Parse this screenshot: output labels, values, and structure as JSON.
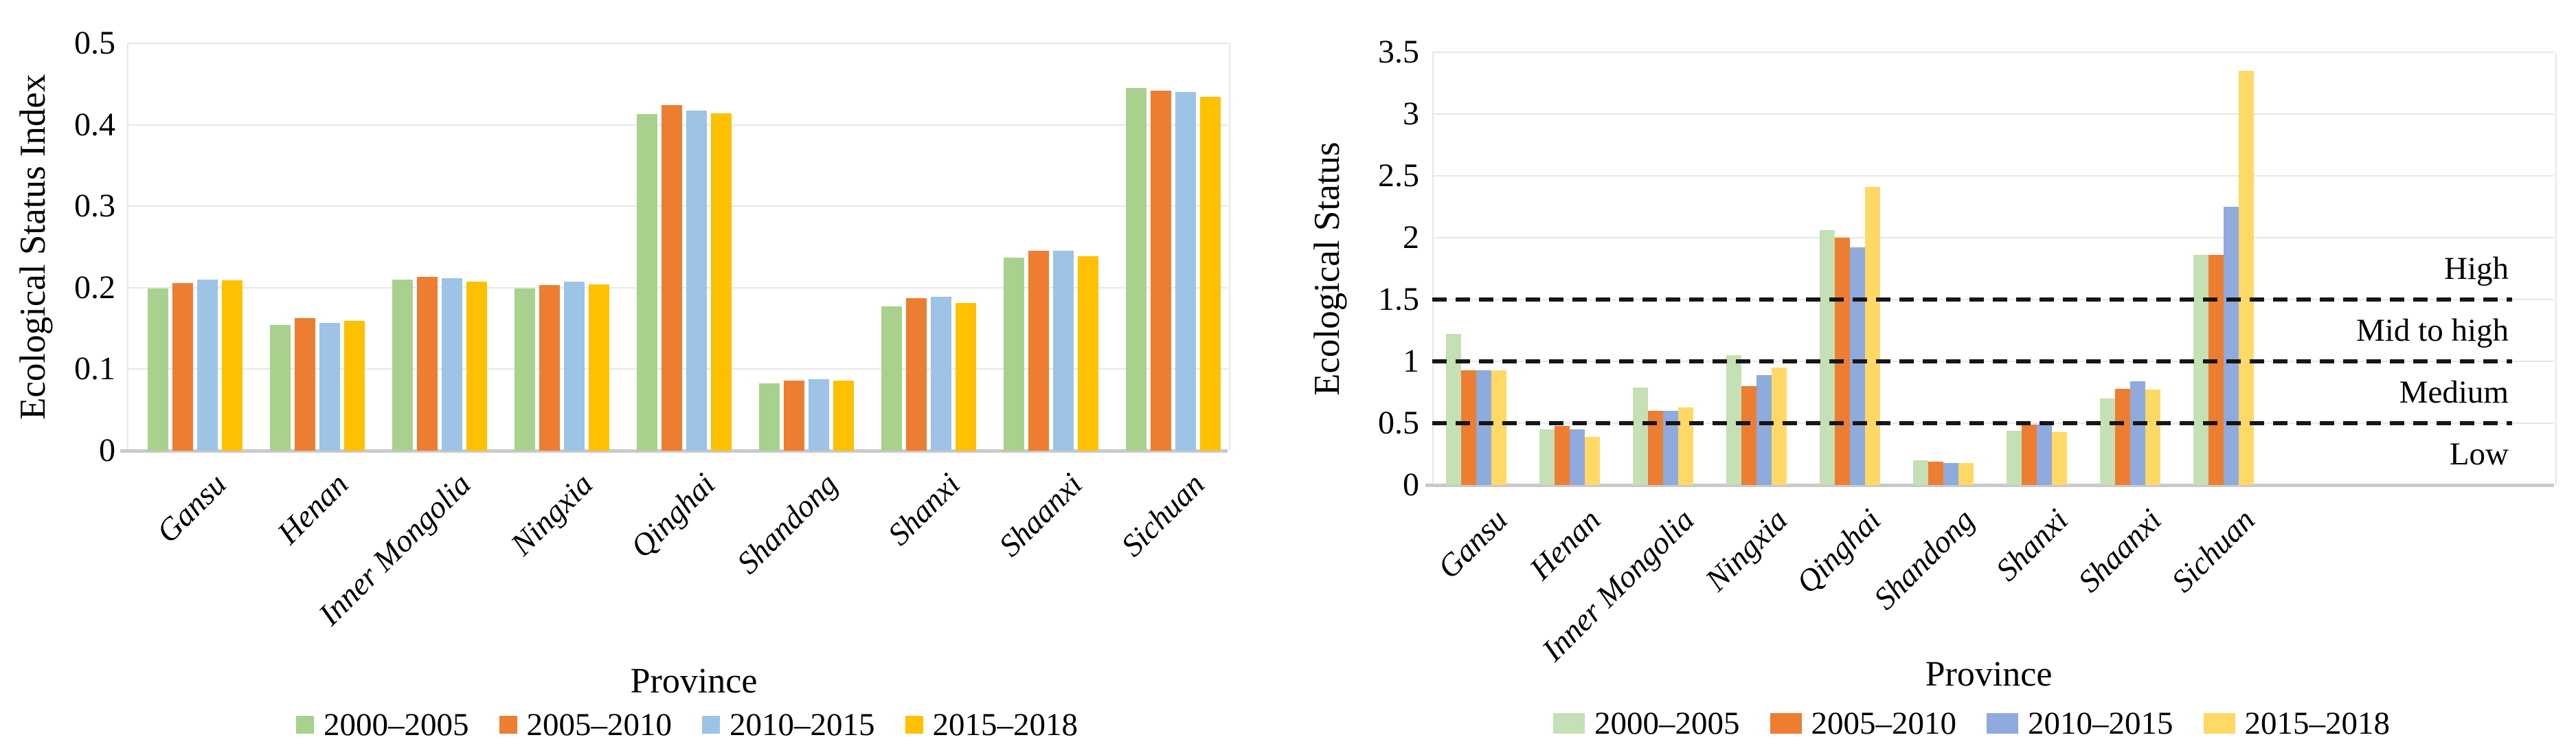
{
  "chart_data": [
    {
      "type": "bar",
      "title": "",
      "ylabel": "Ecological Status Index",
      "xlabel": "Province",
      "ylim": [
        0,
        0.5
      ],
      "yticks": [
        0,
        0.1,
        0.2,
        0.3,
        0.4,
        0.5
      ],
      "ytick_labels": [
        "0",
        "0.1",
        "0.2",
        "0.3",
        "0.4",
        "0.5"
      ],
      "grid": "horizontal",
      "legend_position": "bottom",
      "categories": [
        "Gansu",
        "Henan",
        "Inner Mongolia",
        "Ningxia",
        "Qinghai",
        "Shandong",
        "Shanxi",
        "Shaanxi",
        "Sichuan"
      ],
      "series": [
        {
          "name": "2000–2005",
          "color": "#a9d18e",
          "values": [
            0.199,
            0.154,
            0.21,
            0.199,
            0.413,
            0.083,
            0.177,
            0.237,
            0.445
          ]
        },
        {
          "name": "2005–2010",
          "color": "#ed7d31",
          "values": [
            0.206,
            0.163,
            0.213,
            0.203,
            0.424,
            0.086,
            0.187,
            0.245,
            0.442
          ]
        },
        {
          "name": "2010–2015",
          "color": "#9dc3e6",
          "values": [
            0.21,
            0.157,
            0.212,
            0.207,
            0.417,
            0.088,
            0.189,
            0.245,
            0.44
          ]
        },
        {
          "name": "2015–2018",
          "color": "#ffc000",
          "values": [
            0.209,
            0.159,
            0.207,
            0.204,
            0.414,
            0.086,
            0.181,
            0.239,
            0.434
          ]
        }
      ]
    },
    {
      "type": "bar",
      "title": "",
      "ylabel": "Ecological Status",
      "xlabel": "Province",
      "ylim": [
        0,
        3.5
      ],
      "yticks": [
        0,
        0.5,
        1,
        1.5,
        2,
        2.5,
        3,
        3.5
      ],
      "ytick_labels": [
        "0",
        "0.5",
        "1",
        "1.5",
        "2",
        "2.5",
        "3",
        "3.5"
      ],
      "grid": "horizontal",
      "legend_position": "bottom",
      "categories": [
        "Gansu",
        "Henan",
        "Inner Mongolia",
        "Ningxia",
        "Qinghai",
        "Shandong",
        "Shanxi",
        "Shaanxi",
        "Sichuan"
      ],
      "series": [
        {
          "name": "2000–2005",
          "color": "#c5e0b4",
          "values": [
            1.22,
            0.45,
            0.79,
            1.05,
            2.06,
            0.2,
            0.44,
            0.7,
            1.86
          ]
        },
        {
          "name": "2005–2010",
          "color": "#ed7d31",
          "values": [
            0.93,
            0.48,
            0.6,
            0.8,
            2.0,
            0.19,
            0.49,
            0.78,
            1.86
          ]
        },
        {
          "name": "2010–2015",
          "color": "#8faadc",
          "values": [
            0.93,
            0.45,
            0.6,
            0.89,
            1.92,
            0.18,
            0.49,
            0.84,
            2.25
          ]
        },
        {
          "name": "2015–2018",
          "color": "#ffd966",
          "values": [
            0.93,
            0.39,
            0.63,
            0.95,
            2.41,
            0.18,
            0.43,
            0.77,
            3.35
          ]
        }
      ],
      "thresholds": {
        "values": [
          0.5,
          1.0,
          1.5
        ],
        "style": "dashed",
        "zone_labels": [
          "Low",
          "Medium",
          "Mid to high",
          "High"
        ]
      }
    }
  ]
}
